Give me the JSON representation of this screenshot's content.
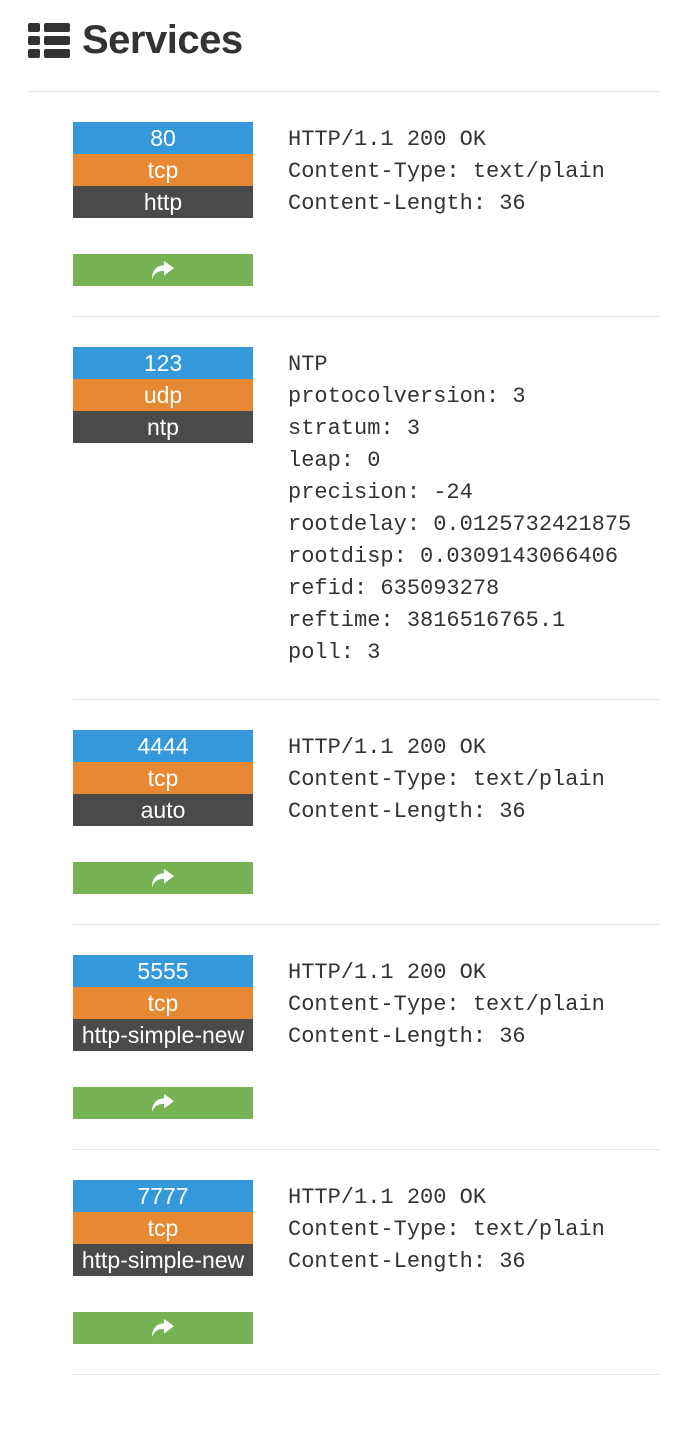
{
  "title": "Services",
  "colors": {
    "port_bg": "#3498db",
    "protocol_bg": "#e67e22",
    "name_bg": "#4a4a4a",
    "share_bg": "#77b255",
    "divider": "#e5e5e5",
    "text": "#333333",
    "badge_text": "#ffffff"
  },
  "services": [
    {
      "port": "80",
      "protocol": "tcp",
      "name": "http",
      "has_share": true,
      "output": "HTTP/1.1 200 OK\nContent-Type: text/plain\nContent-Length: 36"
    },
    {
      "port": "123",
      "protocol": "udp",
      "name": "ntp",
      "has_share": false,
      "output": "NTP\nprotocolversion: 3\nstratum: 3\nleap: 0\nprecision: -24\nrootdelay: 0.0125732421875\nrootdisp: 0.0309143066406\nrefid: 635093278\nreftime: 3816516765.1\npoll: 3\n"
    },
    {
      "port": "4444",
      "protocol": "tcp",
      "name": "auto",
      "has_share": true,
      "output": "HTTP/1.1 200 OK\nContent-Type: text/plain\nContent-Length: 36"
    },
    {
      "port": "5555",
      "protocol": "tcp",
      "name": "http-simple-new",
      "has_share": true,
      "output": "HTTP/1.1 200 OK\nContent-Type: text/plain\nContent-Length: 36"
    },
    {
      "port": "7777",
      "protocol": "tcp",
      "name": "http-simple-new",
      "has_share": true,
      "output": "HTTP/1.1 200 OK\nContent-Type: text/plain\nContent-Length: 36"
    }
  ]
}
